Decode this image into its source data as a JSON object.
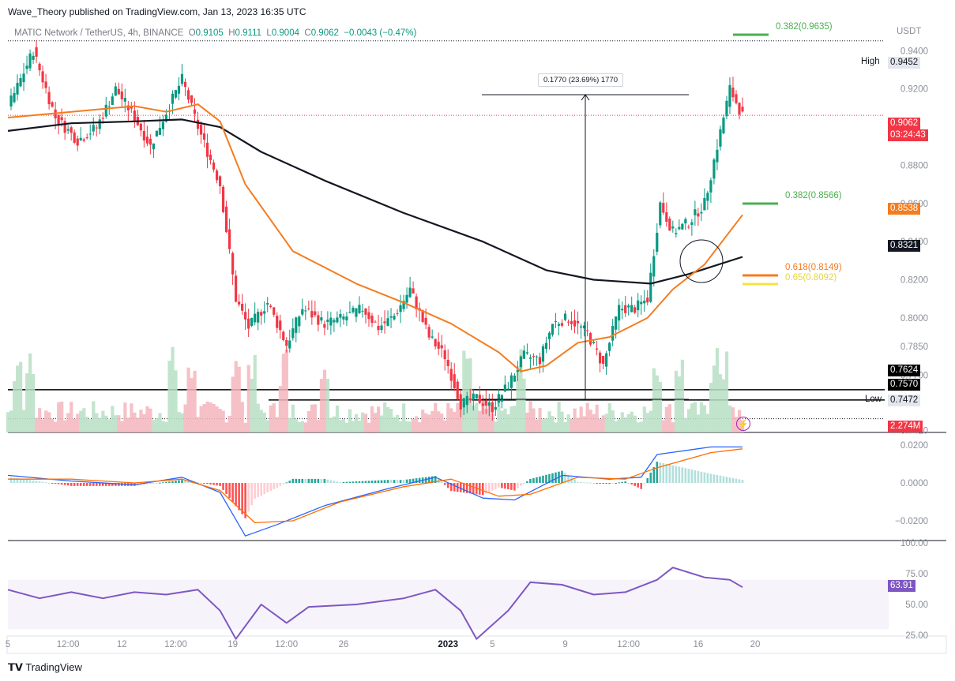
{
  "header": {
    "publisher": "Wave_Theory published on TradingView.com, Jan 13, 2023 16:35 UTC"
  },
  "symbol": {
    "name": "MATIC Network / TetherUS, 4h, BINANCE",
    "o_label": "O",
    "o": "0.9105",
    "h_label": "H",
    "h": "0.9111",
    "l_label": "L",
    "l": "0.9004",
    "c_label": "C",
    "c": "0.9062",
    "change": "−0.0043 (−0.47%)"
  },
  "currency": "USDT",
  "price_axis": [
    "0.9400",
    "0.9200",
    "0.8800",
    "0.8600",
    "0.8400",
    "0.8200",
    "0.8000",
    "0.7850",
    "0.7700",
    "0.7410"
  ],
  "macd_axis": [
    "0.0200",
    "0.0000",
    "−0.0200"
  ],
  "rsi_axis": [
    "100.00",
    "75.00",
    "50.00",
    "25.00"
  ],
  "time_axis": [
    {
      "label": "5",
      "bold": false
    },
    {
      "label": "12:00",
      "bold": false
    },
    {
      "label": "12",
      "bold": false
    },
    {
      "label": "12:00",
      "bold": false
    },
    {
      "label": "19",
      "bold": false
    },
    {
      "label": "12:00",
      "bold": false
    },
    {
      "label": "26",
      "bold": false
    },
    {
      "label": "2023",
      "bold": true
    },
    {
      "label": "5",
      "bold": false
    },
    {
      "label": "9",
      "bold": false
    },
    {
      "label": "12:00",
      "bold": false
    },
    {
      "label": "16",
      "bold": false
    },
    {
      "label": "20",
      "bold": false
    }
  ],
  "badges": {
    "high_label": "High",
    "high": "0.9452",
    "low_label": "Low",
    "low": "0.7472",
    "last_price": "0.9062",
    "countdown": "03:24:43",
    "ema50": "0.8538",
    "ema200": "0.8321",
    "support_upper": "0.7624",
    "support_lower": "0.7570",
    "volume": "2.274M",
    "rsi": "63.91"
  },
  "annotations": {
    "measure": "0.1770 (23.69%) 1770",
    "fib_top": "0.382(0.9635)",
    "fib_382": "0.382(0.8566)",
    "fib_618": "0.618(0.8149)",
    "fib_65": "0.65(0.8092)"
  },
  "colors": {
    "up": "#089981",
    "down": "#f23645",
    "ema50": "#f57c1f",
    "ema200": "#131722",
    "macd": "#2962ff",
    "signal": "#ff6d00",
    "rsi": "#7e57c2",
    "fib_green": "#4caf50",
    "fib_orange": "#f57c1f",
    "fib_yellow": "#f5e342"
  },
  "chart_data": {
    "type": "candlestick",
    "title": "MATIC Network / TetherUS, 4h, BINANCE",
    "ylim": [
      0.74,
      0.948
    ],
    "key_levels": {
      "high": 0.9452,
      "low": 0.7472,
      "support_upper": 0.7624,
      "support_lower": 0.757,
      "last": 0.9062
    },
    "price_path": [
      {
        "x": 0,
        "y": 0.91
      },
      {
        "x": 8,
        "y": 0.94
      },
      {
        "x": 15,
        "y": 0.905
      },
      {
        "x": 22,
        "y": 0.893
      },
      {
        "x": 28,
        "y": 0.9
      },
      {
        "x": 34,
        "y": 0.92
      },
      {
        "x": 40,
        "y": 0.905
      },
      {
        "x": 45,
        "y": 0.89
      },
      {
        "x": 50,
        "y": 0.908
      },
      {
        "x": 55,
        "y": 0.925
      },
      {
        "x": 60,
        "y": 0.9
      },
      {
        "x": 67,
        "y": 0.87
      },
      {
        "x": 72,
        "y": 0.81
      },
      {
        "x": 76,
        "y": 0.795
      },
      {
        "x": 82,
        "y": 0.808
      },
      {
        "x": 88,
        "y": 0.786
      },
      {
        "x": 93,
        "y": 0.805
      },
      {
        "x": 100,
        "y": 0.797
      },
      {
        "x": 106,
        "y": 0.8
      },
      {
        "x": 112,
        "y": 0.805
      },
      {
        "x": 117,
        "y": 0.795
      },
      {
        "x": 122,
        "y": 0.801
      },
      {
        "x": 127,
        "y": 0.815
      },
      {
        "x": 133,
        "y": 0.79
      },
      {
        "x": 138,
        "y": 0.78
      },
      {
        "x": 143,
        "y": 0.755
      },
      {
        "x": 148,
        "y": 0.758
      },
      {
        "x": 153,
        "y": 0.753
      },
      {
        "x": 158,
        "y": 0.765
      },
      {
        "x": 163,
        "y": 0.78
      },
      {
        "x": 168,
        "y": 0.778
      },
      {
        "x": 172,
        "y": 0.797
      },
      {
        "x": 177,
        "y": 0.8
      },
      {
        "x": 183,
        "y": 0.792
      },
      {
        "x": 188,
        "y": 0.775
      },
      {
        "x": 193,
        "y": 0.805
      },
      {
        "x": 198,
        "y": 0.805
      },
      {
        "x": 202,
        "y": 0.81
      },
      {
        "x": 206,
        "y": 0.86
      },
      {
        "x": 210,
        "y": 0.845
      },
      {
        "x": 215,
        "y": 0.85
      },
      {
        "x": 220,
        "y": 0.86
      },
      {
        "x": 224,
        "y": 0.89
      },
      {
        "x": 228,
        "y": 0.92
      },
      {
        "x": 232,
        "y": 0.906
      }
    ],
    "ema50_path": [
      {
        "x": 0,
        "y": 0.905
      },
      {
        "x": 20,
        "y": 0.908
      },
      {
        "x": 40,
        "y": 0.911
      },
      {
        "x": 50,
        "y": 0.908
      },
      {
        "x": 60,
        "y": 0.912
      },
      {
        "x": 67,
        "y": 0.903
      },
      {
        "x": 75,
        "y": 0.87
      },
      {
        "x": 90,
        "y": 0.835
      },
      {
        "x": 110,
        "y": 0.818
      },
      {
        "x": 125,
        "y": 0.808
      },
      {
        "x": 140,
        "y": 0.797
      },
      {
        "x": 155,
        "y": 0.782
      },
      {
        "x": 162,
        "y": 0.772
      },
      {
        "x": 170,
        "y": 0.775
      },
      {
        "x": 180,
        "y": 0.787
      },
      {
        "x": 190,
        "y": 0.79
      },
      {
        "x": 202,
        "y": 0.8
      },
      {
        "x": 210,
        "y": 0.815
      },
      {
        "x": 220,
        "y": 0.828
      },
      {
        "x": 232,
        "y": 0.854
      }
    ],
    "ema200_path": [
      {
        "x": 0,
        "y": 0.898
      },
      {
        "x": 20,
        "y": 0.902
      },
      {
        "x": 40,
        "y": 0.903
      },
      {
        "x": 55,
        "y": 0.904
      },
      {
        "x": 67,
        "y": 0.9
      },
      {
        "x": 80,
        "y": 0.887
      },
      {
        "x": 100,
        "y": 0.872
      },
      {
        "x": 125,
        "y": 0.855
      },
      {
        "x": 150,
        "y": 0.84
      },
      {
        "x": 170,
        "y": 0.825
      },
      {
        "x": 185,
        "y": 0.82
      },
      {
        "x": 203,
        "y": 0.818
      },
      {
        "x": 215,
        "y": 0.823
      },
      {
        "x": 232,
        "y": 0.832
      }
    ],
    "macd_path": [
      {
        "x": 0,
        "y": 0.004
      },
      {
        "x": 20,
        "y": 0.001
      },
      {
        "x": 40,
        "y": -0.001
      },
      {
        "x": 55,
        "y": 0.003
      },
      {
        "x": 67,
        "y": -0.005
      },
      {
        "x": 75,
        "y": -0.028
      },
      {
        "x": 85,
        "y": -0.022
      },
      {
        "x": 100,
        "y": -0.012
      },
      {
        "x": 120,
        "y": -0.003
      },
      {
        "x": 135,
        "y": 0.003
      },
      {
        "x": 150,
        "y": -0.008
      },
      {
        "x": 160,
        "y": -0.009
      },
      {
        "x": 175,
        "y": 0.004
      },
      {
        "x": 190,
        "y": 0.002
      },
      {
        "x": 200,
        "y": 0.003
      },
      {
        "x": 205,
        "y": 0.015
      },
      {
        "x": 222,
        "y": 0.019
      },
      {
        "x": 232,
        "y": 0.019
      }
    ],
    "signal_path": [
      {
        "x": 0,
        "y": 0.002
      },
      {
        "x": 20,
        "y": 0.002
      },
      {
        "x": 40,
        "y": 0.0
      },
      {
        "x": 55,
        "y": 0.002
      },
      {
        "x": 67,
        "y": -0.004
      },
      {
        "x": 78,
        "y": -0.021
      },
      {
        "x": 90,
        "y": -0.02
      },
      {
        "x": 105,
        "y": -0.01
      },
      {
        "x": 125,
        "y": -0.002
      },
      {
        "x": 140,
        "y": 0.002
      },
      {
        "x": 155,
        "y": -0.007
      },
      {
        "x": 165,
        "y": -0.006
      },
      {
        "x": 180,
        "y": 0.003
      },
      {
        "x": 195,
        "y": 0.002
      },
      {
        "x": 205,
        "y": 0.008
      },
      {
        "x": 222,
        "y": 0.016
      },
      {
        "x": 232,
        "y": 0.018
      }
    ],
    "rsi_path": [
      {
        "x": 0,
        "y": 62
      },
      {
        "x": 10,
        "y": 55
      },
      {
        "x": 20,
        "y": 60
      },
      {
        "x": 30,
        "y": 55
      },
      {
        "x": 40,
        "y": 60
      },
      {
        "x": 50,
        "y": 58
      },
      {
        "x": 60,
        "y": 62
      },
      {
        "x": 67,
        "y": 45
      },
      {
        "x": 72,
        "y": 22
      },
      {
        "x": 80,
        "y": 50
      },
      {
        "x": 88,
        "y": 35
      },
      {
        "x": 95,
        "y": 48
      },
      {
        "x": 110,
        "y": 50
      },
      {
        "x": 125,
        "y": 55
      },
      {
        "x": 135,
        "y": 62
      },
      {
        "x": 143,
        "y": 45
      },
      {
        "x": 148,
        "y": 22
      },
      {
        "x": 158,
        "y": 45
      },
      {
        "x": 165,
        "y": 68
      },
      {
        "x": 175,
        "y": 66
      },
      {
        "x": 185,
        "y": 58
      },
      {
        "x": 195,
        "y": 60
      },
      {
        "x": 205,
        "y": 70
      },
      {
        "x": 210,
        "y": 80
      },
      {
        "x": 220,
        "y": 72
      },
      {
        "x": 228,
        "y": 70
      },
      {
        "x": 232,
        "y": 64
      }
    ],
    "macd_ylim": [
      -0.03,
      0.025
    ],
    "rsi_ylim": [
      25,
      100
    ]
  }
}
